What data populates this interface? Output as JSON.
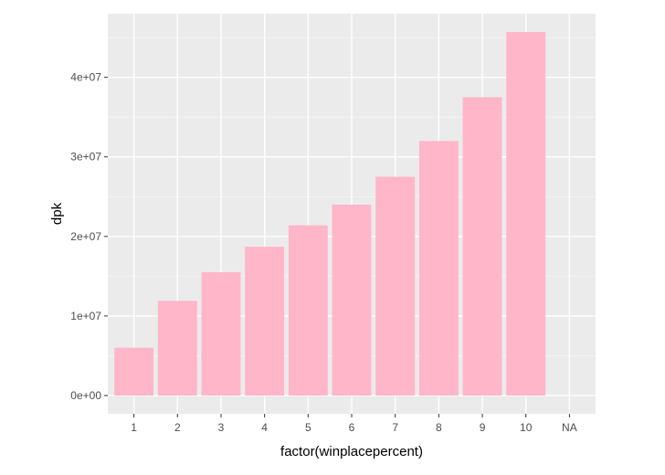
{
  "chart_data": {
    "type": "bar",
    "xlabel": "factor(winplacepercent)",
    "ylabel": "dpk",
    "categories": [
      "1",
      "2",
      "3",
      "4",
      "5",
      "6",
      "7",
      "8",
      "9",
      "10",
      "NA"
    ],
    "values": [
      6000000,
      11900000,
      15500000,
      18700000,
      21400000,
      24000000,
      27500000,
      32000000,
      37500000,
      45700000,
      null
    ],
    "y_ticks": [
      {
        "value": 0,
        "label": "0e+00"
      },
      {
        "value": 10000000,
        "label": "1e+07"
      },
      {
        "value": 20000000,
        "label": "2e+07"
      },
      {
        "value": 30000000,
        "label": "3e+07"
      },
      {
        "value": 40000000,
        "label": "4e+07"
      }
    ],
    "ylim": [
      -2300000,
      48000000
    ],
    "grid": true,
    "colors": {
      "bar": "#FFB6C8",
      "panel": "#EBEBEB",
      "grid_major": "#FFFFFF",
      "grid_minor": "#F5F5F5"
    }
  }
}
